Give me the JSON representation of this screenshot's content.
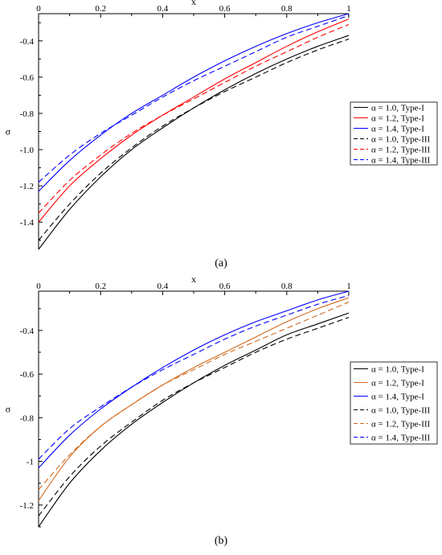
{
  "chart_data": [
    {
      "type": "line",
      "caption": "(a)",
      "xlabel": "x",
      "ylabel": "σ",
      "xlim": [
        0,
        1
      ],
      "ylim": [
        -1.55,
        -0.25
      ],
      "x_ticks": [
        "0",
        "0.2",
        "0.4",
        "0.6",
        "0.8",
        "1"
      ],
      "y_ticks": [
        "-0.4",
        "-0.6",
        "-0.8",
        "-1.0",
        "-1.2",
        "-1.4"
      ],
      "x_axis_position": "top",
      "legend_position": "right",
      "x": [
        0,
        0.1,
        0.2,
        0.3,
        0.4,
        0.5,
        0.6,
        0.7,
        0.8,
        0.9,
        1.0
      ],
      "series": [
        {
          "name": "α = 1.0, Type-I",
          "color": "#000000",
          "dash": "solid",
          "values": [
            -1.55,
            -1.33,
            -1.15,
            -1.0,
            -0.88,
            -0.77,
            -0.67,
            -0.58,
            -0.5,
            -0.43,
            -0.37
          ]
        },
        {
          "name": "α = 1.2, Type-I",
          "color": "#ff0000",
          "dash": "solid",
          "values": [
            -1.4,
            -1.2,
            -1.05,
            -0.92,
            -0.81,
            -0.71,
            -0.61,
            -0.52,
            -0.43,
            -0.35,
            -0.28
          ]
        },
        {
          "name": "α = 1.4, Type-I",
          "color": "#0000ff",
          "dash": "solid",
          "values": [
            -1.23,
            -1.06,
            -0.92,
            -0.8,
            -0.7,
            -0.6,
            -0.51,
            -0.43,
            -0.36,
            -0.3,
            -0.25
          ]
        },
        {
          "name": "α = 1.0, Type-III",
          "color": "#000000",
          "dash": "dashed",
          "values": [
            -1.5,
            -1.3,
            -1.13,
            -0.99,
            -0.87,
            -0.77,
            -0.68,
            -0.6,
            -0.52,
            -0.45,
            -0.39
          ]
        },
        {
          "name": "α = 1.2, Type-III",
          "color": "#ff0000",
          "dash": "dashed",
          "values": [
            -1.35,
            -1.17,
            -1.03,
            -0.91,
            -0.81,
            -0.72,
            -0.63,
            -0.54,
            -0.46,
            -0.38,
            -0.31
          ]
        },
        {
          "name": "α = 1.4, Type-III",
          "color": "#0000ff",
          "dash": "dashed",
          "values": [
            -1.18,
            -1.03,
            -0.91,
            -0.81,
            -0.71,
            -0.62,
            -0.54,
            -0.46,
            -0.38,
            -0.32,
            -0.26
          ]
        }
      ]
    },
    {
      "type": "line",
      "caption": "(b)",
      "xlabel": "x",
      "ylabel": "σ",
      "xlim": [
        0,
        1
      ],
      "ylim": [
        -1.3,
        -0.22
      ],
      "x_ticks": [
        "0",
        "0.2",
        "0.4",
        "0.6",
        "0.8",
        "1"
      ],
      "y_ticks": [
        "-0.4",
        "-0.6",
        "-0.8",
        "-1",
        "-1.2"
      ],
      "x_axis_position": "top",
      "legend_position": "right",
      "x": [
        0,
        0.1,
        0.2,
        0.3,
        0.4,
        0.5,
        0.6,
        0.7,
        0.8,
        0.9,
        1.0
      ],
      "series": [
        {
          "name": "α = 1.0, Type-I",
          "color": "#000000",
          "dash": "solid",
          "values": [
            -1.3,
            -1.1,
            -0.95,
            -0.83,
            -0.73,
            -0.64,
            -0.56,
            -0.49,
            -0.42,
            -0.37,
            -0.32
          ]
        },
        {
          "name": "α = 1.2, Type-I",
          "color": "#d2691e",
          "dash": "solid",
          "values": [
            -1.18,
            -0.98,
            -0.84,
            -0.74,
            -0.65,
            -0.57,
            -0.5,
            -0.43,
            -0.36,
            -0.3,
            -0.25
          ]
        },
        {
          "name": "α = 1.4, Type-I",
          "color": "#0000ff",
          "dash": "solid",
          "values": [
            -1.03,
            -0.88,
            -0.76,
            -0.66,
            -0.57,
            -0.49,
            -0.42,
            -0.36,
            -0.31,
            -0.26,
            -0.22
          ]
        },
        {
          "name": "α = 1.0, Type-III",
          "color": "#000000",
          "dash": "dashed",
          "values": [
            -1.25,
            -1.07,
            -0.93,
            -0.82,
            -0.72,
            -0.64,
            -0.57,
            -0.5,
            -0.44,
            -0.39,
            -0.34
          ]
        },
        {
          "name": "α = 1.2, Type-III",
          "color": "#d2691e",
          "dash": "dashed",
          "values": [
            -1.13,
            -0.97,
            -0.84,
            -0.74,
            -0.65,
            -0.58,
            -0.51,
            -0.45,
            -0.39,
            -0.33,
            -0.27
          ]
        },
        {
          "name": "α = 1.4, Type-III",
          "color": "#0000ff",
          "dash": "dashed",
          "values": [
            -0.99,
            -0.85,
            -0.75,
            -0.66,
            -0.58,
            -0.51,
            -0.44,
            -0.38,
            -0.33,
            -0.28,
            -0.24
          ]
        }
      ]
    }
  ]
}
